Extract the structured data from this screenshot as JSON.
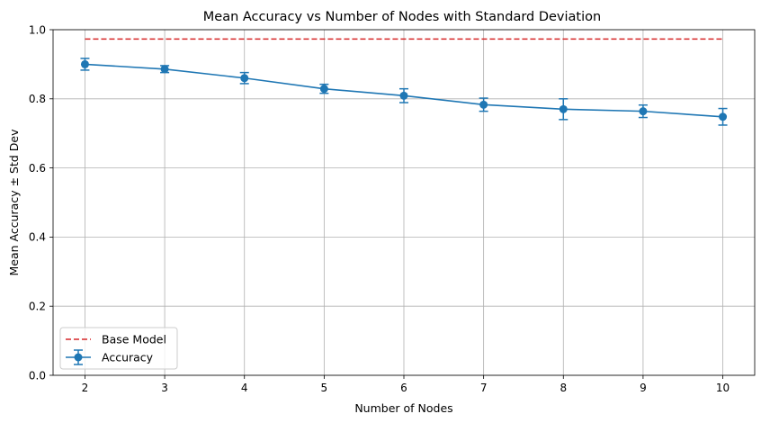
{
  "chart_data": {
    "type": "line",
    "title": "Mean Accuracy vs Number of Nodes with Standard Deviation",
    "xlabel": "Number of Nodes",
    "ylabel": "Mean Accuracy ± Std Dev",
    "xlim": [
      1.6,
      10.4
    ],
    "ylim": [
      0.0,
      1.0
    ],
    "x_ticks": [
      "2",
      "3",
      "4",
      "5",
      "6",
      "7",
      "8",
      "9",
      "10"
    ],
    "y_ticks": [
      "0.0",
      "0.2",
      "0.4",
      "0.6",
      "0.8",
      "1.0"
    ],
    "grid": true,
    "legend_position": "lower-left",
    "series": [
      {
        "name": "Base Model",
        "style": "dashed",
        "color": "#d62728",
        "x": [
          2,
          10
        ],
        "values": [
          0.973,
          0.973
        ]
      },
      {
        "name": "Accuracy",
        "style": "line-marker-errorbar",
        "color": "#1f77b4",
        "x": [
          2,
          3,
          4,
          5,
          6,
          7,
          8,
          9,
          10
        ],
        "values": [
          0.9,
          0.886,
          0.86,
          0.829,
          0.809,
          0.783,
          0.77,
          0.764,
          0.748
        ],
        "errors": [
          0.017,
          0.01,
          0.016,
          0.013,
          0.02,
          0.019,
          0.03,
          0.018,
          0.024
        ]
      }
    ]
  }
}
